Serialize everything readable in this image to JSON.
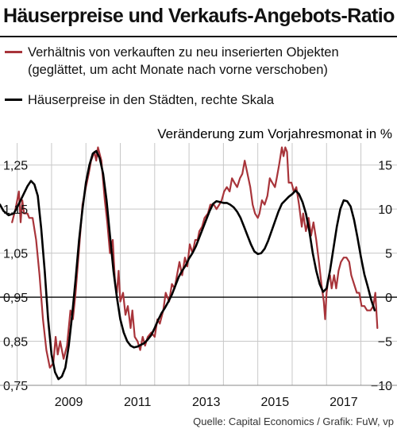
{
  "title": "Häuserpreise und Verkaufs-Angebots-Ratio",
  "legend": {
    "red_line1": "Verhältnis von verkauften zu neu inserierten Objekten",
    "red_line2": "(geglättet, um acht Monate nach vorne verschoben)",
    "black": "Häuserpreise in den Städten, rechte Skala"
  },
  "source": "Quelle: Capital Economics / Grafik: FuW, vp",
  "colors": {
    "red": "#a8343a",
    "black": "#000000",
    "grid": "#c8c8c8"
  },
  "chart_data": {
    "type": "line",
    "right_axis_label": "Veränderung zum Vorjahresmonat in %",
    "x_ticks": [
      2009,
      2011,
      2013,
      2015,
      2017
    ],
    "xlim": [
      2007.5,
      2019.05
    ],
    "left_axis": {
      "ylim": [
        0.75,
        1.3
      ],
      "ticks": [
        1.25,
        1.15,
        1.05,
        0.95,
        0.85,
        0.75
      ],
      "tick_labels": [
        "1,25",
        "1,15",
        "1,05",
        "0,95",
        "0,85",
        "0,75"
      ]
    },
    "right_axis": {
      "ylim": [
        -10,
        17.5
      ],
      "ticks": [
        15,
        10,
        5,
        0,
        -5,
        -10
      ],
      "tick_labels": [
        "15",
        "10",
        "5",
        "0",
        "−5",
        "−10"
      ]
    },
    "series": [
      {
        "name": "Verhältnis von verkauften zu neu inserierten Objekten",
        "axis": "left",
        "color": "#a8343a",
        "points": [
          [
            2007.85,
            1.12
          ],
          [
            2007.95,
            1.15
          ],
          [
            2008.05,
            1.19
          ],
          [
            2008.1,
            1.12
          ],
          [
            2008.15,
            1.17
          ],
          [
            2008.2,
            1.14
          ],
          [
            2008.3,
            1.14
          ],
          [
            2008.35,
            1.13
          ],
          [
            2008.45,
            1.13
          ],
          [
            2008.55,
            1.08
          ],
          [
            2008.65,
            1.0
          ],
          [
            2008.75,
            0.9
          ],
          [
            2008.85,
            0.83
          ],
          [
            2008.95,
            0.79
          ],
          [
            2009.05,
            0.8
          ],
          [
            2009.12,
            0.86
          ],
          [
            2009.18,
            0.82
          ],
          [
            2009.25,
            0.85
          ],
          [
            2009.35,
            0.81
          ],
          [
            2009.45,
            0.84
          ],
          [
            2009.55,
            0.92
          ],
          [
            2009.62,
            0.9
          ],
          [
            2009.7,
            0.96
          ],
          [
            2009.8,
            1.06
          ],
          [
            2009.9,
            1.16
          ],
          [
            2010.0,
            1.2
          ],
          [
            2010.08,
            1.23
          ],
          [
            2010.15,
            1.26
          ],
          [
            2010.25,
            1.28
          ],
          [
            2010.3,
            1.26
          ],
          [
            2010.35,
            1.29
          ],
          [
            2010.45,
            1.26
          ],
          [
            2010.55,
            1.17
          ],
          [
            2010.62,
            1.12
          ],
          [
            2010.7,
            1.05
          ],
          [
            2010.78,
            1.08
          ],
          [
            2010.85,
            0.98
          ],
          [
            2010.9,
            0.96
          ],
          [
            2010.95,
            1.01
          ],
          [
            2011.0,
            0.94
          ],
          [
            2011.08,
            0.96
          ],
          [
            2011.15,
            0.91
          ],
          [
            2011.22,
            0.93
          ],
          [
            2011.3,
            0.88
          ],
          [
            2011.35,
            0.92
          ],
          [
            2011.42,
            0.86
          ],
          [
            2011.5,
            0.85
          ],
          [
            2011.58,
            0.83
          ],
          [
            2011.65,
            0.86
          ],
          [
            2011.72,
            0.84
          ],
          [
            2011.8,
            0.86
          ],
          [
            2011.9,
            0.87
          ],
          [
            2012.0,
            0.86
          ],
          [
            2012.08,
            0.9
          ],
          [
            2012.15,
            0.89
          ],
          [
            2012.25,
            0.92
          ],
          [
            2012.32,
            0.96
          ],
          [
            2012.42,
            0.94
          ],
          [
            2012.5,
            0.98
          ],
          [
            2012.58,
            0.97
          ],
          [
            2012.65,
            1.0
          ],
          [
            2012.72,
            1.03
          ],
          [
            2012.8,
            1.0
          ],
          [
            2012.88,
            1.04
          ],
          [
            2012.95,
            1.02
          ],
          [
            2013.02,
            1.07
          ],
          [
            2013.1,
            1.05
          ],
          [
            2013.18,
            1.08
          ],
          [
            2013.25,
            1.08
          ],
          [
            2013.3,
            1.1
          ],
          [
            2013.38,
            1.11
          ],
          [
            2013.45,
            1.13
          ],
          [
            2013.55,
            1.14
          ],
          [
            2013.62,
            1.16
          ],
          [
            2013.72,
            1.16
          ],
          [
            2013.8,
            1.15
          ],
          [
            2013.88,
            1.16
          ],
          [
            2013.95,
            1.17
          ],
          [
            2014.02,
            1.19
          ],
          [
            2014.1,
            1.2
          ],
          [
            2014.18,
            1.19
          ],
          [
            2014.25,
            1.22
          ],
          [
            2014.32,
            1.21
          ],
          [
            2014.4,
            1.2
          ],
          [
            2014.48,
            1.22
          ],
          [
            2014.55,
            1.23
          ],
          [
            2014.62,
            1.26
          ],
          [
            2014.7,
            1.23
          ],
          [
            2014.78,
            1.2
          ],
          [
            2014.85,
            1.16
          ],
          [
            2014.92,
            1.14
          ],
          [
            2015.0,
            1.13
          ],
          [
            2015.05,
            1.14
          ],
          [
            2015.12,
            1.17
          ],
          [
            2015.2,
            1.16
          ],
          [
            2015.28,
            1.18
          ],
          [
            2015.35,
            1.22
          ],
          [
            2015.42,
            1.21
          ],
          [
            2015.5,
            1.2
          ],
          [
            2015.55,
            1.22
          ],
          [
            2015.62,
            1.25
          ],
          [
            2015.7,
            1.29
          ],
          [
            2015.75,
            1.27
          ],
          [
            2015.8,
            1.29
          ],
          [
            2015.85,
            1.28
          ],
          [
            2015.9,
            1.21
          ],
          [
            2015.98,
            1.21
          ],
          [
            2016.05,
            1.19
          ],
          [
            2016.12,
            1.2
          ],
          [
            2016.2,
            1.16
          ],
          [
            2016.28,
            1.11
          ],
          [
            2016.32,
            1.14
          ],
          [
            2016.4,
            1.1
          ],
          [
            2016.48,
            1.13
          ],
          [
            2016.55,
            1.09
          ],
          [
            2016.62,
            1.12
          ],
          [
            2016.7,
            1.08
          ],
          [
            2016.78,
            1.03
          ],
          [
            2016.85,
            0.98
          ],
          [
            2016.92,
            0.94
          ],
          [
            2016.96,
            0.9
          ],
          [
            2017.0,
            0.96
          ],
          [
            2017.05,
            0.99
          ],
          [
            2017.1,
            1.0
          ],
          [
            2017.15,
            0.97
          ],
          [
            2017.22,
            1.0
          ],
          [
            2017.28,
            0.97
          ],
          [
            2017.35,
            1.01
          ],
          [
            2017.42,
            1.03
          ],
          [
            2017.5,
            1.04
          ],
          [
            2017.58,
            1.04
          ],
          [
            2017.66,
            1.03
          ],
          [
            2017.72,
            1.0
          ],
          [
            2017.8,
            0.98
          ],
          [
            2017.88,
            0.96
          ],
          [
            2017.95,
            0.96
          ],
          [
            2018.02,
            0.93
          ],
          [
            2018.1,
            0.93
          ],
          [
            2018.18,
            0.92
          ],
          [
            2018.28,
            0.92
          ],
          [
            2018.36,
            0.93
          ],
          [
            2018.42,
            0.96
          ],
          [
            2018.48,
            0.88
          ]
        ]
      },
      {
        "name": "Häuserpreise in den Städten, rechte Skala",
        "axis": "right",
        "color": "#000000",
        "points": [
          [
            2007.5,
            10.5
          ],
          [
            2007.6,
            9.8
          ],
          [
            2007.75,
            9.3
          ],
          [
            2007.9,
            9.5
          ],
          [
            2008.0,
            10.2
          ],
          [
            2008.1,
            11.0
          ],
          [
            2008.2,
            11.8
          ],
          [
            2008.3,
            12.6
          ],
          [
            2008.4,
            13.2
          ],
          [
            2008.5,
            12.8
          ],
          [
            2008.6,
            11.5
          ],
          [
            2008.7,
            7.8
          ],
          [
            2008.8,
            3.0
          ],
          [
            2008.9,
            -2.5
          ],
          [
            2009.0,
            -6.5
          ],
          [
            2009.1,
            -8.5
          ],
          [
            2009.2,
            -9.3
          ],
          [
            2009.3,
            -9.0
          ],
          [
            2009.4,
            -8.0
          ],
          [
            2009.5,
            -5.5
          ],
          [
            2009.6,
            -2.0
          ],
          [
            2009.7,
            2.0
          ],
          [
            2009.8,
            6.5
          ],
          [
            2009.9,
            10.0
          ],
          [
            2010.0,
            13.0
          ],
          [
            2010.1,
            15.0
          ],
          [
            2010.2,
            16.3
          ],
          [
            2010.3,
            16.6
          ],
          [
            2010.4,
            15.8
          ],
          [
            2010.5,
            14.0
          ],
          [
            2010.6,
            11.0
          ],
          [
            2010.7,
            7.0
          ],
          [
            2010.8,
            3.0
          ],
          [
            2010.9,
            0.0
          ],
          [
            2011.0,
            -2.5
          ],
          [
            2011.1,
            -4.0
          ],
          [
            2011.2,
            -5.0
          ],
          [
            2011.3,
            -5.5
          ],
          [
            2011.4,
            -5.7
          ],
          [
            2011.5,
            -5.6
          ],
          [
            2011.6,
            -5.4
          ],
          [
            2011.7,
            -5.2
          ],
          [
            2011.8,
            -4.8
          ],
          [
            2011.9,
            -4.3
          ],
          [
            2012.0,
            -3.5
          ],
          [
            2012.1,
            -2.6
          ],
          [
            2012.2,
            -1.8
          ],
          [
            2012.3,
            -1.2
          ],
          [
            2012.4,
            -0.5
          ],
          [
            2012.5,
            0.3
          ],
          [
            2012.6,
            1.3
          ],
          [
            2012.7,
            2.3
          ],
          [
            2012.8,
            3.0
          ],
          [
            2012.9,
            3.6
          ],
          [
            2013.0,
            4.4
          ],
          [
            2013.1,
            5.0
          ],
          [
            2013.2,
            5.8
          ],
          [
            2013.3,
            6.8
          ],
          [
            2013.4,
            7.8
          ],
          [
            2013.5,
            8.8
          ],
          [
            2013.6,
            9.8
          ],
          [
            2013.7,
            10.6
          ],
          [
            2013.8,
            10.9
          ],
          [
            2013.9,
            10.8
          ],
          [
            2014.0,
            10.7
          ],
          [
            2014.1,
            10.7
          ],
          [
            2014.2,
            10.5
          ],
          [
            2014.3,
            10.2
          ],
          [
            2014.4,
            9.7
          ],
          [
            2014.5,
            9.0
          ],
          [
            2014.6,
            8.0
          ],
          [
            2014.7,
            7.0
          ],
          [
            2014.8,
            6.0
          ],
          [
            2014.9,
            5.2
          ],
          [
            2015.0,
            4.9
          ],
          [
            2015.1,
            5.0
          ],
          [
            2015.2,
            5.5
          ],
          [
            2015.3,
            6.4
          ],
          [
            2015.4,
            7.5
          ],
          [
            2015.5,
            8.6
          ],
          [
            2015.6,
            9.7
          ],
          [
            2015.7,
            10.6
          ],
          [
            2015.8,
            11.0
          ],
          [
            2015.9,
            11.4
          ],
          [
            2016.0,
            11.7
          ],
          [
            2016.1,
            12.1
          ],
          [
            2016.2,
            11.7
          ],
          [
            2016.3,
            10.8
          ],
          [
            2016.4,
            9.5
          ],
          [
            2016.5,
            7.5
          ],
          [
            2016.6,
            5.0
          ],
          [
            2016.7,
            3.0
          ],
          [
            2016.8,
            1.5
          ],
          [
            2016.9,
            0.6
          ],
          [
            2017.0,
            1.0
          ],
          [
            2017.1,
            3.0
          ],
          [
            2017.2,
            5.5
          ],
          [
            2017.3,
            8.0
          ],
          [
            2017.4,
            10.0
          ],
          [
            2017.5,
            11.0
          ],
          [
            2017.6,
            10.9
          ],
          [
            2017.7,
            10.3
          ],
          [
            2017.8,
            8.8
          ],
          [
            2017.9,
            6.8
          ],
          [
            2018.0,
            4.6
          ],
          [
            2018.1,
            2.6
          ],
          [
            2018.2,
            1.2
          ],
          [
            2018.3,
            -0.3
          ],
          [
            2018.4,
            -1.5
          ]
        ]
      }
    ]
  }
}
